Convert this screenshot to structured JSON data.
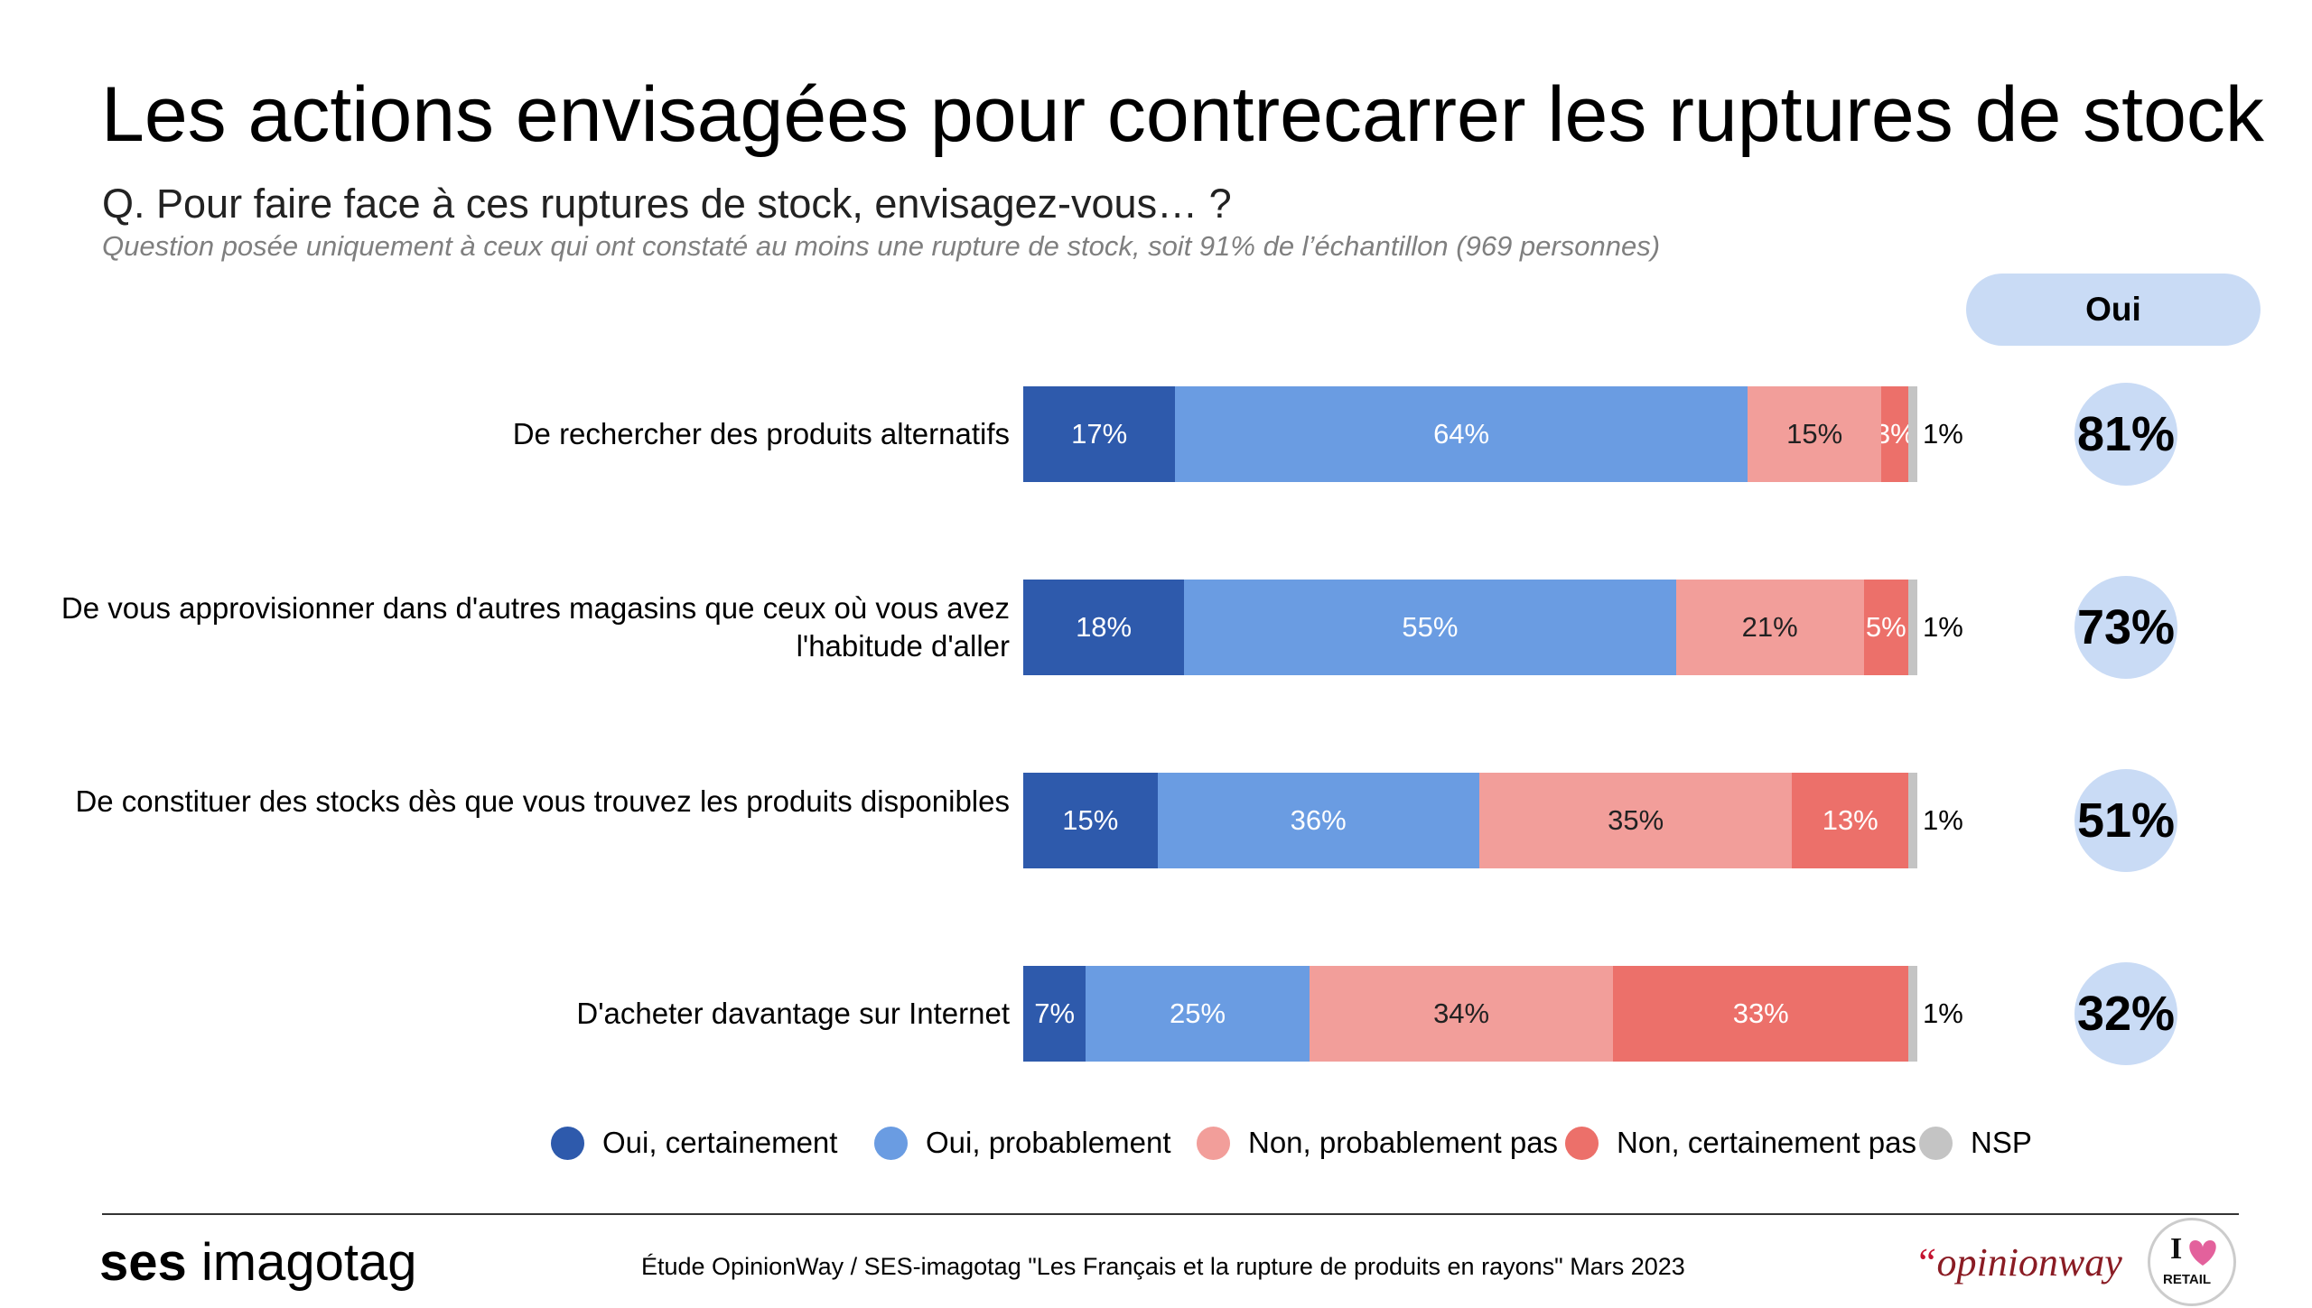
{
  "title": "Les actions envisagées pour contrecarrer les ruptures de stock",
  "question": "Q. Pour faire face à ces ruptures de stock, envisagez-vous… ?",
  "note": "Question posée uniquement à ceux qui ont constaté au moins une rupture de stock, soit 91% de l’échantillon (969 personnes)",
  "oui_header": "Oui",
  "colors": {
    "oui_certainement": "#2e5aac",
    "oui_probablement": "#6a9ce2",
    "non_probablement_pas": "#f29e9a",
    "non_certainement_pas": "#ec706a",
    "nsp": "#c4c4c4",
    "oui_badge": "#c9dbf5"
  },
  "chart_data": {
    "type": "bar",
    "orientation": "horizontal",
    "stacked": true,
    "categories": [
      "De rechercher des produits alternatifs",
      "De vous approvisionner dans d'autres magasins que ceux où vous avez l'habitude d'aller",
      "De constituer des stocks dès que vous trouvez les produits disponibles",
      "D'acheter davantage sur Internet"
    ],
    "series": [
      {
        "name": "Oui, certainement",
        "values": [
          17,
          18,
          15,
          7
        ],
        "labels": [
          "17%",
          "18%",
          "15%",
          "7%"
        ]
      },
      {
        "name": "Oui, probablement",
        "values": [
          64,
          55,
          36,
          25
        ],
        "labels": [
          "64%",
          "55%",
          "36%",
          "25%"
        ]
      },
      {
        "name": "Non, probablement pas",
        "values": [
          15,
          21,
          35,
          34
        ],
        "labels": [
          "15%",
          "21%",
          "35%",
          "34%"
        ]
      },
      {
        "name": "Non, certainement pas",
        "values": [
          3,
          5,
          13,
          33
        ],
        "labels": [
          "3%",
          "5%",
          "13%",
          "33%"
        ]
      },
      {
        "name": "NSP",
        "values": [
          1,
          1,
          1,
          1
        ],
        "labels": [
          "1%",
          "1%",
          "1%",
          "1%"
        ]
      }
    ],
    "oui_totals": [
      "81%",
      "73%",
      "51%",
      "32%"
    ],
    "legend_position": "bottom",
    "grid": false
  },
  "footer": {
    "brand_bold": "ses",
    "brand_light": "imagotag",
    "source": "Étude OpinionWay / SES-imagotag \"Les Français et la rupture de produits en rayons\" Mars 2023",
    "opinionway_quote": "“",
    "opinionway_name": "opinionway",
    "retail_logo_text": "I ♥ RETAIL"
  }
}
